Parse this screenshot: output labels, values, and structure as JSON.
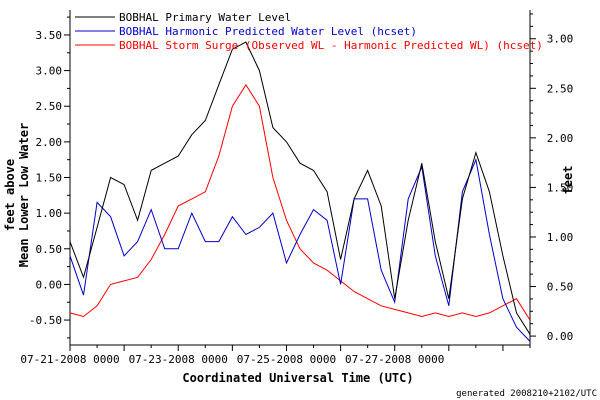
{
  "chart_data": {
    "type": "line",
    "title": "",
    "xlabel": "Coordinated Universal Time (UTC)",
    "ylabel_left": [
      "feet above",
      "Mean Lower Low Water"
    ],
    "ylabel_right": "feet",
    "x_range_days": [
      "07-21-2008 0000",
      "07-29-2008 1200"
    ],
    "x_tick_labels": [
      "07-21-2008 0000",
      "07-23-2008 0000",
      "07-25-2008 0000",
      "07-27-2008 0000"
    ],
    "x_tick_dates": [
      "2008-07-21T00:00",
      "2008-07-23T00:00",
      "2008-07-25T00:00",
      "2008-07-27T00:00"
    ],
    "ylim_left": [
      -0.85,
      3.85
    ],
    "ylim_right": [
      -0.09,
      3.29
    ],
    "yticks_left": [
      "-0.50",
      "0.00",
      "0.50",
      "1.00",
      "1.50",
      "2.00",
      "2.50",
      "3.00",
      "3.50"
    ],
    "yticks_left_values": [
      -0.5,
      0,
      0.5,
      1,
      1.5,
      2,
      2.5,
      3,
      3.5
    ],
    "yticks_right": [
      "0.00",
      "0.50",
      "1.00",
      "1.50",
      "2.00",
      "2.50",
      "3.00"
    ],
    "yticks_right_values": [
      0,
      0.5,
      1,
      1.5,
      2,
      2.5,
      3
    ],
    "legend_position": "top-left",
    "series": [
      {
        "name": "BOBHAL Primary Water Level",
        "color": "#000000",
        "axis": "left",
        "x": [
          "2008-07-21T00:00",
          "2008-07-21T06:00",
          "2008-07-21T12:00",
          "2008-07-21T18:00",
          "2008-07-22T00:00",
          "2008-07-22T06:00",
          "2008-07-22T12:00",
          "2008-07-22T18:00",
          "2008-07-23T00:00",
          "2008-07-23T06:00",
          "2008-07-23T12:00",
          "2008-07-23T18:00",
          "2008-07-24T00:00",
          "2008-07-24T06:00",
          "2008-07-24T12:00",
          "2008-07-24T18:00",
          "2008-07-25T00:00",
          "2008-07-25T06:00",
          "2008-07-25T12:00",
          "2008-07-25T18:00",
          "2008-07-26T00:00",
          "2008-07-26T06:00",
          "2008-07-26T12:00",
          "2008-07-26T18:00",
          "2008-07-27T00:00",
          "2008-07-27T06:00",
          "2008-07-27T12:00",
          "2008-07-27T18:00",
          "2008-07-28T00:00",
          "2008-07-28T06:00",
          "2008-07-28T12:00",
          "2008-07-28T18:00",
          "2008-07-29T00:00",
          "2008-07-29T06:00",
          "2008-07-29T12:00"
        ],
        "values": [
          0.6,
          0.1,
          0.8,
          1.5,
          1.4,
          0.9,
          1.6,
          1.7,
          1.8,
          2.1,
          2.3,
          2.8,
          3.3,
          3.4,
          3.0,
          2.2,
          2.0,
          1.7,
          1.6,
          1.3,
          0.35,
          1.2,
          1.6,
          1.1,
          -0.2,
          0.9,
          1.7,
          0.6,
          -0.2,
          1.2,
          1.85,
          1.3,
          0.4,
          -0.4,
          -0.7
        ]
      },
      {
        "name": "BOBHAL Harmonic Predicted Water Level (hcset)",
        "color": "#0000cc",
        "axis": "left",
        "x": [
          "2008-07-21T00:00",
          "2008-07-21T06:00",
          "2008-07-21T12:00",
          "2008-07-21T18:00",
          "2008-07-22T00:00",
          "2008-07-22T06:00",
          "2008-07-22T12:00",
          "2008-07-22T18:00",
          "2008-07-23T00:00",
          "2008-07-23T06:00",
          "2008-07-23T12:00",
          "2008-07-23T18:00",
          "2008-07-24T00:00",
          "2008-07-24T06:00",
          "2008-07-24T12:00",
          "2008-07-24T18:00",
          "2008-07-25T00:00",
          "2008-07-25T06:00",
          "2008-07-25T12:00",
          "2008-07-25T18:00",
          "2008-07-26T00:00",
          "2008-07-26T06:00",
          "2008-07-26T12:00",
          "2008-07-26T18:00",
          "2008-07-27T00:00",
          "2008-07-27T06:00",
          "2008-07-27T12:00",
          "2008-07-27T18:00",
          "2008-07-28T00:00",
          "2008-07-28T06:00",
          "2008-07-28T12:00",
          "2008-07-28T18:00",
          "2008-07-29T00:00",
          "2008-07-29T06:00",
          "2008-07-29T12:00"
        ],
        "values": [
          0.4,
          -0.15,
          1.15,
          0.95,
          0.4,
          0.6,
          1.05,
          0.5,
          0.5,
          1.0,
          0.6,
          0.6,
          0.95,
          0.7,
          0.8,
          1.0,
          0.3,
          0.7,
          1.05,
          0.9,
          0.0,
          1.2,
          1.2,
          0.2,
          -0.25,
          1.2,
          1.65,
          0.4,
          -0.3,
          1.3,
          1.75,
          0.7,
          -0.2,
          -0.6,
          -0.8
        ]
      },
      {
        "name": "BOBHAL Storm Surge (Observed WL - Harmonic Predicted WL) (hcset)",
        "color": "#ff0000",
        "axis": "left",
        "x": [
          "2008-07-21T00:00",
          "2008-07-21T06:00",
          "2008-07-21T12:00",
          "2008-07-21T18:00",
          "2008-07-22T00:00",
          "2008-07-22T06:00",
          "2008-07-22T12:00",
          "2008-07-22T18:00",
          "2008-07-23T00:00",
          "2008-07-23T06:00",
          "2008-07-23T12:00",
          "2008-07-23T18:00",
          "2008-07-24T00:00",
          "2008-07-24T06:00",
          "2008-07-24T12:00",
          "2008-07-24T18:00",
          "2008-07-25T00:00",
          "2008-07-25T06:00",
          "2008-07-25T12:00",
          "2008-07-25T18:00",
          "2008-07-26T00:00",
          "2008-07-26T06:00",
          "2008-07-26T12:00",
          "2008-07-26T18:00",
          "2008-07-27T00:00",
          "2008-07-27T06:00",
          "2008-07-27T12:00",
          "2008-07-27T18:00",
          "2008-07-28T00:00",
          "2008-07-28T06:00",
          "2008-07-28T12:00",
          "2008-07-28T18:00",
          "2008-07-29T00:00",
          "2008-07-29T06:00",
          "2008-07-29T12:00"
        ],
        "values": [
          -0.4,
          -0.45,
          -0.3,
          0.0,
          0.05,
          0.1,
          0.35,
          0.7,
          1.1,
          1.2,
          1.3,
          1.8,
          2.5,
          2.8,
          2.5,
          1.5,
          0.9,
          0.5,
          0.3,
          0.2,
          0.05,
          -0.1,
          -0.2,
          -0.3,
          -0.35,
          -0.4,
          -0.45,
          -0.4,
          -0.45,
          -0.4,
          -0.45,
          -0.4,
          -0.3,
          -0.2,
          -0.5
        ]
      }
    ]
  },
  "footer": "generated 2008210+2102/UTC"
}
